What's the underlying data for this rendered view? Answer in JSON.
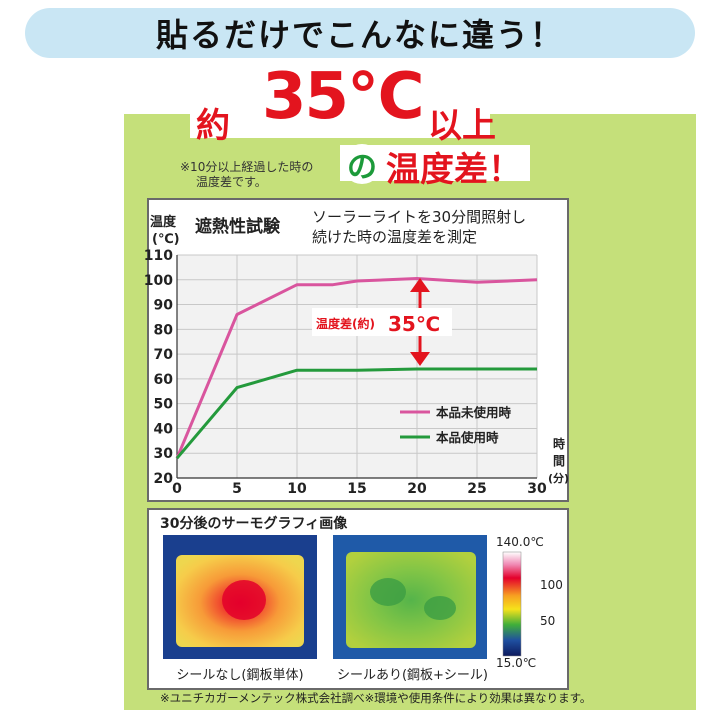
{
  "banner": {
    "text": "貼るだけでこんなに違う！"
  },
  "headline": {
    "pre": "約",
    "value": "35℃",
    "post": "以上",
    "no": "の",
    "rest": "温度差！",
    "note_line1": "※10分以上経過した時の",
    "note_line2": "温度差です。"
  },
  "chart_data": {
    "type": "line",
    "title": "遮熱性試験",
    "subtitle_line1": "ソーラーライトを30分間照射し",
    "subtitle_line2": "続けた時の温度差を測定",
    "ylabel_line1": "温度",
    "ylabel_line2": "(℃)",
    "xlabel_chars": [
      "時",
      "間",
      "(分)"
    ],
    "x": [
      0,
      5,
      10,
      15,
      20,
      25,
      30
    ],
    "x_tick_labels": [
      "0",
      "5",
      "10",
      "15",
      "20",
      "25",
      "30"
    ],
    "y_tick_labels": [
      "20",
      "30",
      "40",
      "50",
      "60",
      "70",
      "80",
      "90",
      "100",
      "110"
    ],
    "xlim": [
      0,
      30
    ],
    "ylim": [
      20,
      110
    ],
    "grid": true,
    "series": [
      {
        "name": "本品未使用時",
        "color": "#d9559e",
        "points": [
          [
            0,
            28
          ],
          [
            5,
            86
          ],
          [
            10,
            98
          ],
          [
            13,
            98
          ],
          [
            15,
            99.5
          ],
          [
            20,
            100.5
          ],
          [
            25,
            99
          ],
          [
            30,
            100
          ]
        ]
      },
      {
        "name": "本品使用時",
        "color": "#249a3c",
        "points": [
          [
            0,
            28
          ],
          [
            5,
            56.5
          ],
          [
            10,
            63.5
          ],
          [
            15,
            63.5
          ],
          [
            20,
            64
          ],
          [
            25,
            64
          ],
          [
            30,
            64
          ]
        ]
      }
    ],
    "annotation": {
      "label": "温度差(約)",
      "value": "35℃",
      "color": "#e3141e"
    },
    "legend_position": "bottom-right"
  },
  "thermo": {
    "title": "30分後のサーモグラフィ画像",
    "left_caption": "シールなし(鋼板単体)",
    "right_caption": "シールあり(鋼板+シール)",
    "scale_top": "140.0℃",
    "scale_100": "100",
    "scale_50": "50",
    "scale_bottom": "15.0℃"
  },
  "footnote": "※ユニチカガーメンテック株式会社調べ※環境や使用条件により効果は異なります。"
}
